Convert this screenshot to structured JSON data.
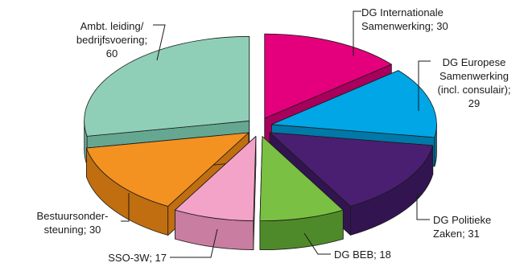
{
  "chart_data": {
    "type": "pie",
    "style": "exploded-3d",
    "title": "",
    "slices": [
      {
        "label_lines": [
          "DG Internationale",
          "Samenwerking; 30"
        ],
        "category": "DG Internationale Samenwerking",
        "value": 30,
        "color": "#e4007c",
        "side": "#a8005c"
      },
      {
        "label_lines": [
          "DG Europese",
          "Samenwerking",
          "(incl. consulair);",
          "29"
        ],
        "category": "DG Europese Samenwerking (incl. consulair)",
        "value": 29,
        "color": "#00a6e6",
        "side": "#0079a8"
      },
      {
        "label_lines": [
          "DG Politieke",
          "Zaken; 31"
        ],
        "category": "DG Politieke Zaken",
        "value": 31,
        "color": "#4a1f72",
        "side": "#321450"
      },
      {
        "label_lines": [
          "DG BEB; 18"
        ],
        "category": "DG BEB",
        "value": 18,
        "color": "#7ac043",
        "side": "#4f8a2a"
      },
      {
        "label_lines": [
          "SSO-3W; 17"
        ],
        "category": "SSO-3W",
        "value": 17,
        "color": "#f4a3c8",
        "side": "#c97da0"
      },
      {
        "label_lines": [
          "Bestuursonder-",
          "steuning; 30"
        ],
        "category": "Bestuursondersteuning",
        "value": 30,
        "color": "#f39220",
        "side": "#c06e10"
      },
      {
        "label_lines": [
          "Ambt. leiding/",
          "bedrijfsvoering;",
          "60"
        ],
        "category": "Ambt. leiding/bedrijfsvoering",
        "value": 60,
        "color": "#8fcfb8",
        "side": "#66a792"
      }
    ]
  }
}
